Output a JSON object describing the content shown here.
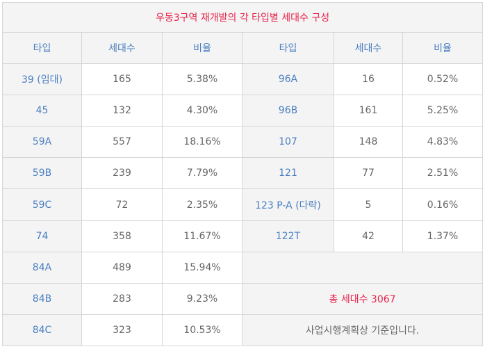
{
  "title": "우동3구역 재개발의 각 타입별 세대수 구성",
  "headers": [
    "타입",
    "세대수",
    "비율",
    "타입",
    "세대수",
    "비율"
  ],
  "left_rows": [
    {
      "type": "39 (임대)",
      "count": "165",
      "ratio": "5.38%"
    },
    {
      "type": "45",
      "count": "132",
      "ratio": "4.30%"
    },
    {
      "type": "59A",
      "count": "557",
      "ratio": "18.16%"
    },
    {
      "type": "59B",
      "count": "239",
      "ratio": "7.79%"
    },
    {
      "type": "59C",
      "count": "72",
      "ratio": "2.35%"
    },
    {
      "type": "74",
      "count": "358",
      "ratio": "11.67%"
    },
    {
      "type": "84A",
      "count": "489",
      "ratio": "15.94%"
    },
    {
      "type": "84B",
      "count": "283",
      "ratio": "9.23%"
    },
    {
      "type": "84C",
      "count": "323",
      "ratio": "10.53%"
    }
  ],
  "right_rows": [
    {
      "type": "96A",
      "count": "16",
      "ratio": "0.52%"
    },
    {
      "type": "96B",
      "count": "161",
      "ratio": "5.25%"
    },
    {
      "type": "107",
      "count": "148",
      "ratio": "4.83%"
    },
    {
      "type": "121",
      "count": "77",
      "ratio": "2.51%"
    },
    {
      "type": "123 P-A (다락)",
      "count": "5",
      "ratio": "0.16%"
    },
    {
      "type": "122T",
      "count": "42",
      "ratio": "1.37%"
    }
  ],
  "total_text": "총 세대수 3067",
  "note_text": "사업시행계획상 기준입니다.",
  "colors": {
    "title": "#e8214a",
    "type": "#4a7fc1",
    "value": "#666666",
    "border": "#d6d6d6",
    "header_bg": "#f4f4f4"
  }
}
